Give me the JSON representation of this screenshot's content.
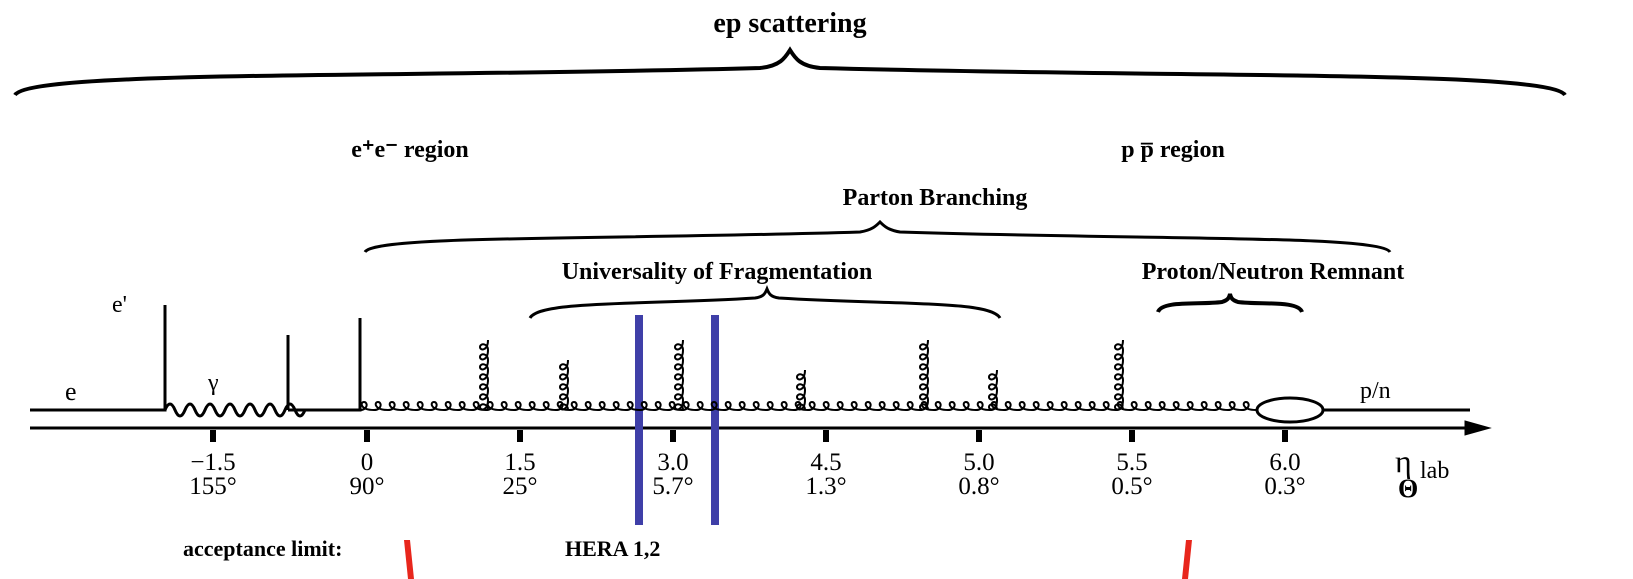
{
  "title": "ep scattering",
  "regions": {
    "left": "e⁺e⁻ region",
    "right": "p p̅ region"
  },
  "braces": {
    "parton": "Parton Branching",
    "fragmentation": "Universality of Fragmentation",
    "remnant": "Proton/Neutron Remnant"
  },
  "particles": {
    "scattered": "e'",
    "electron": "e",
    "photon": "γ",
    "proton": "p/n"
  },
  "axis": {
    "eta": "η",
    "eta_sub": "lab",
    "theta": "Θ",
    "ticks": [
      {
        "eta": "−1.5",
        "theta": "155°"
      },
      {
        "eta": "0",
        "theta": "90°"
      },
      {
        "eta": "1.5",
        "theta": "25°"
      },
      {
        "eta": "3.0",
        "theta": "5.7°"
      },
      {
        "eta": "4.5",
        "theta": "1.3°"
      },
      {
        "eta": "5.0",
        "theta": "0.8°"
      },
      {
        "eta": "5.5",
        "theta": "0.5°"
      },
      {
        "eta": "6.0",
        "theta": "0.3°"
      }
    ]
  },
  "footer": {
    "acceptance": "acceptance limit:",
    "hera": "HERA 1,2"
  }
}
